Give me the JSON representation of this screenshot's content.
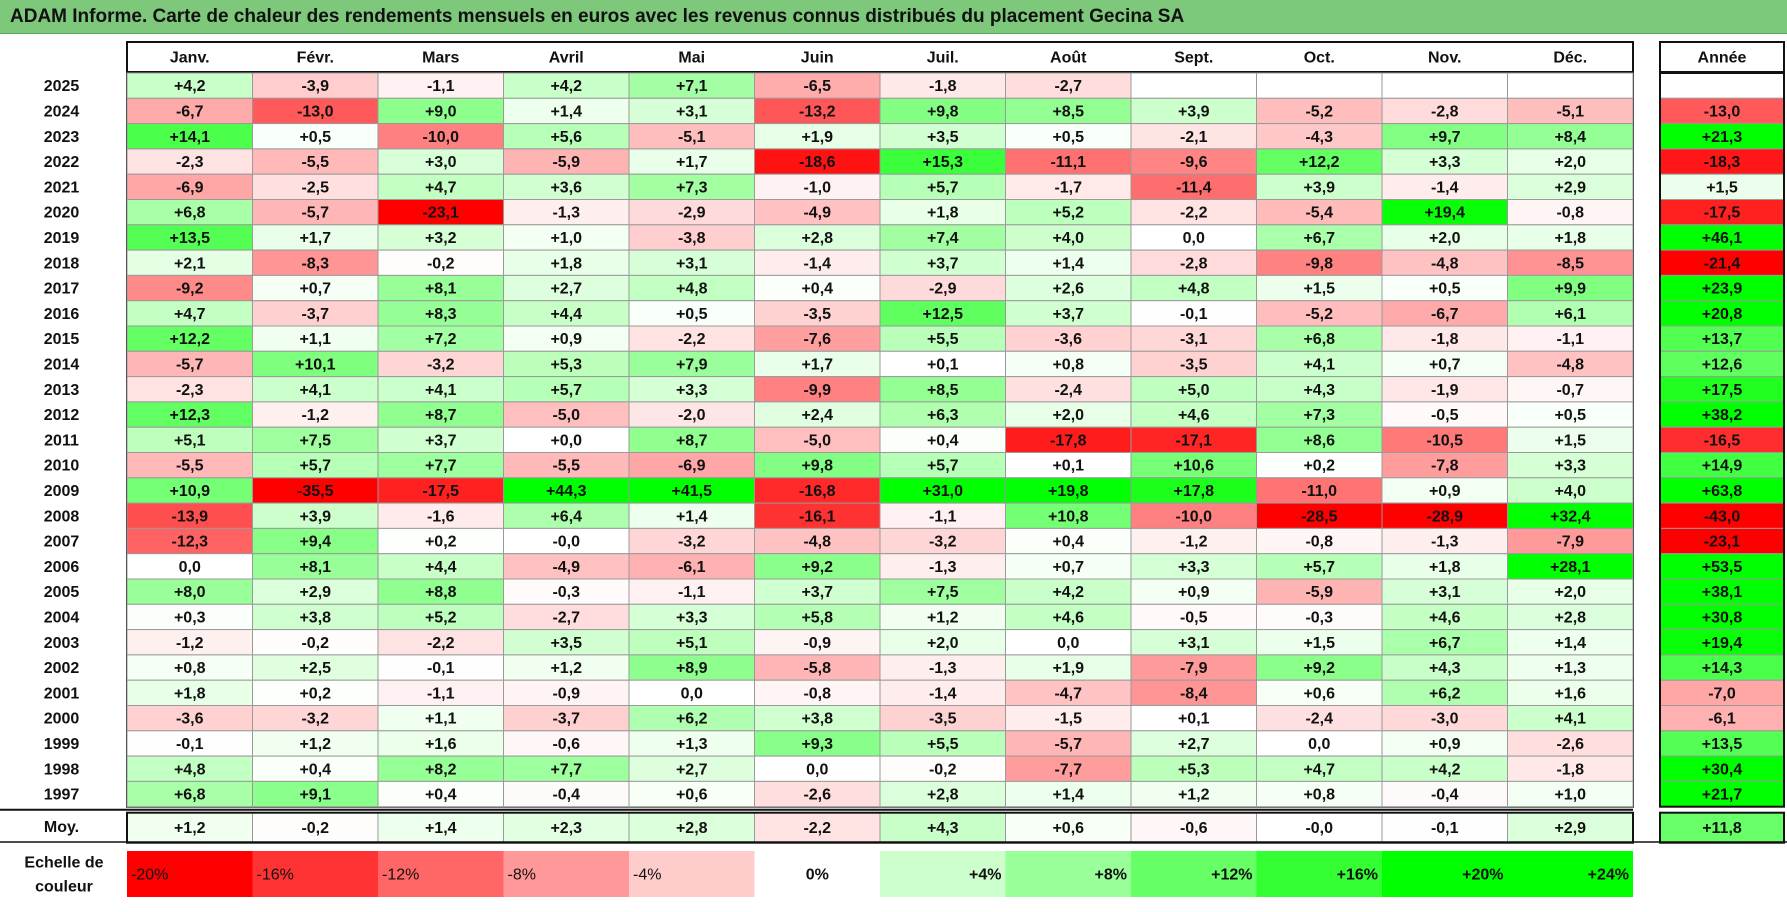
{
  "title": "ADAM Informe. Carte de chaleur des rendements mensuels en euros avec les revenus connus distribués du placement Gecina SA",
  "chart_data": {
    "type": "heatmap",
    "title": "ADAM Informe. Carte de chaleur des rendements mensuels en euros avec les revenus connus distribués du placement Gecina SA",
    "columns": [
      "Janv.",
      "Févr.",
      "Mars",
      "Avril",
      "Mai",
      "Juin",
      "Juil.",
      "Août",
      "Sept.",
      "Oct.",
      "Nov.",
      "Déc."
    ],
    "year_column": "Année",
    "rows": [
      {
        "label": "2025",
        "values": [
          "+4,2",
          "-3,9",
          "-1,1",
          "+4,2",
          "+7,1",
          "-6,5",
          "-1,8",
          "-2,7",
          "",
          "",
          "",
          ""
        ],
        "year": ""
      },
      {
        "label": "2024",
        "values": [
          "-6,7",
          "-13,0",
          "+9,0",
          "+1,4",
          "+3,1",
          "-13,2",
          "+9,8",
          "+8,5",
          "+3,9",
          "-5,2",
          "-2,8",
          "-5,1"
        ],
        "year": "-13,0"
      },
      {
        "label": "2023",
        "values": [
          "+14,1",
          "+0,5",
          "-10,0",
          "+5,6",
          "-5,1",
          "+1,9",
          "+3,5",
          "+0,5",
          "-2,1",
          "-4,3",
          "+9,7",
          "+8,4"
        ],
        "year": "+21,3"
      },
      {
        "label": "2022",
        "values": [
          "-2,3",
          "-5,5",
          "+3,0",
          "-5,9",
          "+1,7",
          "-18,6",
          "+15,3",
          "-11,1",
          "-9,6",
          "+12,2",
          "+3,3",
          "+2,0"
        ],
        "year": "-18,3"
      },
      {
        "label": "2021",
        "values": [
          "-6,9",
          "-2,5",
          "+4,7",
          "+3,6",
          "+7,3",
          "-1,0",
          "+5,7",
          "-1,7",
          "-11,4",
          "+3,9",
          "-1,4",
          "+2,9"
        ],
        "year": "+1,5"
      },
      {
        "label": "2020",
        "values": [
          "+6,8",
          "-5,7",
          "-23,1",
          "-1,3",
          "-2,9",
          "-4,9",
          "+1,8",
          "+5,2",
          "-2,2",
          "-5,4",
          "+19,4",
          "-0,8"
        ],
        "year": "-17,5"
      },
      {
        "label": "2019",
        "values": [
          "+13,5",
          "+1,7",
          "+3,2",
          "+1,0",
          "-3,8",
          "+2,8",
          "+7,4",
          "+4,0",
          "0,0",
          "+6,7",
          "+2,0",
          "+1,8"
        ],
        "year": "+46,1"
      },
      {
        "label": "2018",
        "values": [
          "+2,1",
          "-8,3",
          "-0,2",
          "+1,8",
          "+3,1",
          "-1,4",
          "+3,7",
          "+1,4",
          "-2,8",
          "-9,8",
          "-4,8",
          "-8,5"
        ],
        "year": "-21,4"
      },
      {
        "label": "2017",
        "values": [
          "-9,2",
          "+0,7",
          "+8,1",
          "+2,7",
          "+4,8",
          "+0,4",
          "-2,9",
          "+2,6",
          "+4,8",
          "+1,5",
          "+0,5",
          "+9,9"
        ],
        "year": "+23,9"
      },
      {
        "label": "2016",
        "values": [
          "+4,7",
          "-3,7",
          "+8,3",
          "+4,4",
          "+0,5",
          "-3,5",
          "+12,5",
          "+3,7",
          "-0,1",
          "-5,2",
          "-6,7",
          "+6,1"
        ],
        "year": "+20,8"
      },
      {
        "label": "2015",
        "values": [
          "+12,2",
          "+1,1",
          "+7,2",
          "+0,9",
          "-2,2",
          "-7,6",
          "+5,5",
          "-3,6",
          "-3,1",
          "+6,8",
          "-1,8",
          "-1,1"
        ],
        "year": "+13,7"
      },
      {
        "label": "2014",
        "values": [
          "-5,7",
          "+10,1",
          "-3,2",
          "+5,3",
          "+7,9",
          "+1,7",
          "+0,1",
          "+0,8",
          "-3,5",
          "+4,1",
          "+0,7",
          "-4,8"
        ],
        "year": "+12,6"
      },
      {
        "label": "2013",
        "values": [
          "-2,3",
          "+4,1",
          "+4,1",
          "+5,7",
          "+3,3",
          "-9,9",
          "+8,5",
          "-2,4",
          "+5,0",
          "+4,3",
          "-1,9",
          "-0,7"
        ],
        "year": "+17,5"
      },
      {
        "label": "2012",
        "values": [
          "+12,3",
          "-1,2",
          "+8,7",
          "-5,0",
          "-2,0",
          "+2,4",
          "+6,3",
          "+2,0",
          "+4,6",
          "+7,3",
          "-0,5",
          "+0,5"
        ],
        "year": "+38,2"
      },
      {
        "label": "2011",
        "values": [
          "+5,1",
          "+7,5",
          "+3,7",
          "+0,0",
          "+8,7",
          "-5,0",
          "+0,4",
          "-17,8",
          "-17,1",
          "+8,6",
          "-10,5",
          "+1,5"
        ],
        "year": "-16,5"
      },
      {
        "label": "2010",
        "values": [
          "-5,5",
          "+5,7",
          "+7,7",
          "-5,5",
          "-6,9",
          "+9,8",
          "+5,7",
          "+0,1",
          "+10,6",
          "+0,2",
          "-7,8",
          "+3,3"
        ],
        "year": "+14,9"
      },
      {
        "label": "2009",
        "values": [
          "+10,9",
          "-35,5",
          "-17,5",
          "+44,3",
          "+41,5",
          "-16,8",
          "+31,0",
          "+19,8",
          "+17,8",
          "-11,0",
          "+0,9",
          "+4,0"
        ],
        "year": "+63,8"
      },
      {
        "label": "2008",
        "values": [
          "-13,9",
          "+3,9",
          "-1,6",
          "+6,4",
          "+1,4",
          "-16,1",
          "-1,1",
          "+10,8",
          "-10,0",
          "-28,5",
          "-28,9",
          "+32,4"
        ],
        "year": "-43,0"
      },
      {
        "label": "2007",
        "values": [
          "-12,3",
          "+9,4",
          "+0,2",
          "-0,0",
          "-3,2",
          "-4,8",
          "-3,2",
          "+0,4",
          "-1,2",
          "-0,8",
          "-1,3",
          "-7,9"
        ],
        "year": "-23,1"
      },
      {
        "label": "2006",
        "values": [
          "0,0",
          "+8,1",
          "+4,4",
          "-4,9",
          "-6,1",
          "+9,2",
          "-1,3",
          "+0,7",
          "+3,3",
          "+5,7",
          "+1,8",
          "+28,1"
        ],
        "year": "+53,5"
      },
      {
        "label": "2005",
        "values": [
          "+8,0",
          "+2,9",
          "+8,8",
          "-0,3",
          "-1,1",
          "+3,7",
          "+7,5",
          "+4,2",
          "+0,9",
          "-5,9",
          "+3,1",
          "+2,0"
        ],
        "year": "+38,1"
      },
      {
        "label": "2004",
        "values": [
          "+0,3",
          "+3,8",
          "+5,2",
          "-2,7",
          "+3,3",
          "+5,8",
          "+1,2",
          "+4,6",
          "-0,5",
          "-0,3",
          "+4,6",
          "+2,8"
        ],
        "year": "+30,8"
      },
      {
        "label": "2003",
        "values": [
          "-1,2",
          "-0,2",
          "-2,2",
          "+3,5",
          "+5,1",
          "-0,9",
          "+2,0",
          "0,0",
          "+3,1",
          "+1,5",
          "+6,7",
          "+1,4"
        ],
        "year": "+19,4"
      },
      {
        "label": "2002",
        "values": [
          "+0,8",
          "+2,5",
          "-0,1",
          "+1,2",
          "+8,9",
          "-5,8",
          "-1,3",
          "+1,9",
          "-7,9",
          "+9,2",
          "+4,3",
          "+1,3"
        ],
        "year": "+14,3"
      },
      {
        "label": "2001",
        "values": [
          "+1,8",
          "+0,2",
          "-1,1",
          "-0,9",
          "0,0",
          "-0,8",
          "-1,4",
          "-4,7",
          "-8,4",
          "+0,6",
          "+6,2",
          "+1,6"
        ],
        "year": "-7,0"
      },
      {
        "label": "2000",
        "values": [
          "-3,6",
          "-3,2",
          "+1,1",
          "-3,7",
          "+6,2",
          "+3,8",
          "-3,5",
          "-1,5",
          "+0,1",
          "-2,4",
          "-3,0",
          "+4,1"
        ],
        "year": "-6,1"
      },
      {
        "label": "1999",
        "values": [
          "-0,1",
          "+1,2",
          "+1,6",
          "-0,6",
          "+1,3",
          "+9,3",
          "+5,5",
          "-5,7",
          "+2,7",
          "0,0",
          "+0,9",
          "-2,6"
        ],
        "year": "+13,5"
      },
      {
        "label": "1998",
        "values": [
          "+4,8",
          "+0,4",
          "+8,2",
          "+7,7",
          "+2,7",
          "0,0",
          "-0,2",
          "-7,7",
          "+5,3",
          "+4,7",
          "+4,2",
          "-1,8"
        ],
        "year": "+30,4"
      },
      {
        "label": "1997",
        "values": [
          "+6,8",
          "+9,1",
          "+0,4",
          "-0,4",
          "+0,6",
          "-2,6",
          "+2,8",
          "+1,4",
          "+1,2",
          "+0,8",
          "-0,4",
          "+1,0"
        ],
        "year": "+21,7"
      }
    ],
    "average": {
      "label": "Moy.",
      "values": [
        "+1,2",
        "-0,2",
        "+1,4",
        "+2,3",
        "+2,8",
        "-2,2",
        "+4,3",
        "+0,6",
        "-0,6",
        "-0,0",
        "-0,1",
        "+2,9"
      ],
      "year": "+11,8"
    },
    "scale": {
      "label_line1": "Echelle de",
      "label_line2": "couleur",
      "steps": [
        {
          "label": "-20%",
          "value": -20,
          "align": "left"
        },
        {
          "label": "-16%",
          "value": -16,
          "align": "left"
        },
        {
          "label": "-12%",
          "value": -12,
          "align": "left"
        },
        {
          "label": "-8%",
          "value": -8,
          "align": "left"
        },
        {
          "label": "-4%",
          "value": -4,
          "align": "left"
        },
        {
          "label": "0%",
          "value": 0,
          "align": "center"
        },
        {
          "label": "+4%",
          "value": 4,
          "align": "right"
        },
        {
          "label": "+8%",
          "value": 8,
          "align": "right"
        },
        {
          "label": "+12%",
          "value": 12,
          "align": "right"
        },
        {
          "label": "+16%",
          "value": 16,
          "align": "right"
        },
        {
          "label": "+20%",
          "value": 20,
          "align": "right"
        },
        {
          "label": "+24%",
          "value": 24,
          "align": "right"
        }
      ]
    },
    "colors": {
      "negative_max": "#ff0000",
      "positive_max": "#00ff00",
      "neutral": "#ffffff",
      "header_bg": "#7dc87a",
      "grid": "#9a9a9a"
    }
  }
}
